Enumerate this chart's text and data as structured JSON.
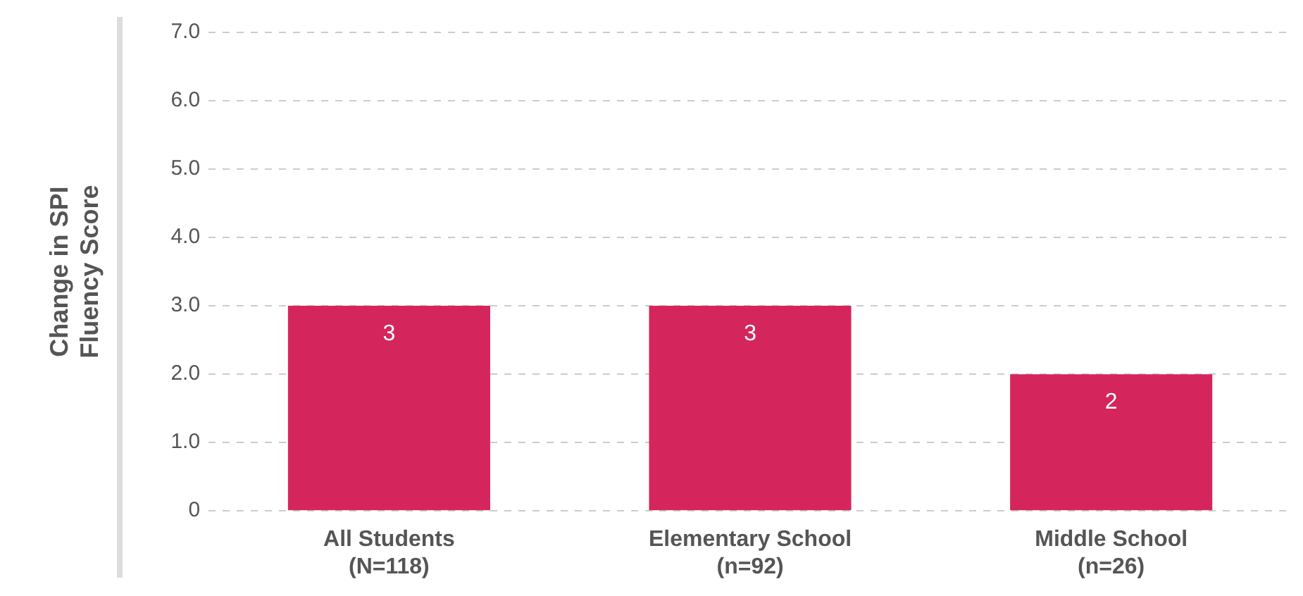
{
  "chart_data": {
    "type": "bar",
    "ylabel": "Change in SPI\nFluency Score",
    "categories": [
      "All Students\n(N=118)",
      "Elementary School\n(n=92)",
      "Middle School\n(n=26)"
    ],
    "values": [
      3,
      3,
      2
    ],
    "color": "#d4265c",
    "data_labels": true,
    "ylim": [
      0,
      7
    ],
    "yticks": [
      {
        "value": 0,
        "label": "0"
      },
      {
        "value": 1,
        "label": "1.0"
      },
      {
        "value": 2,
        "label": "2.0"
      },
      {
        "value": 3,
        "label": "3.0"
      },
      {
        "value": 4,
        "label": "4.0"
      },
      {
        "value": 5,
        "label": "5.0"
      },
      {
        "value": 6,
        "label": "6.0"
      },
      {
        "value": 7,
        "label": "7.0"
      }
    ],
    "grid": "y",
    "legend": false
  }
}
